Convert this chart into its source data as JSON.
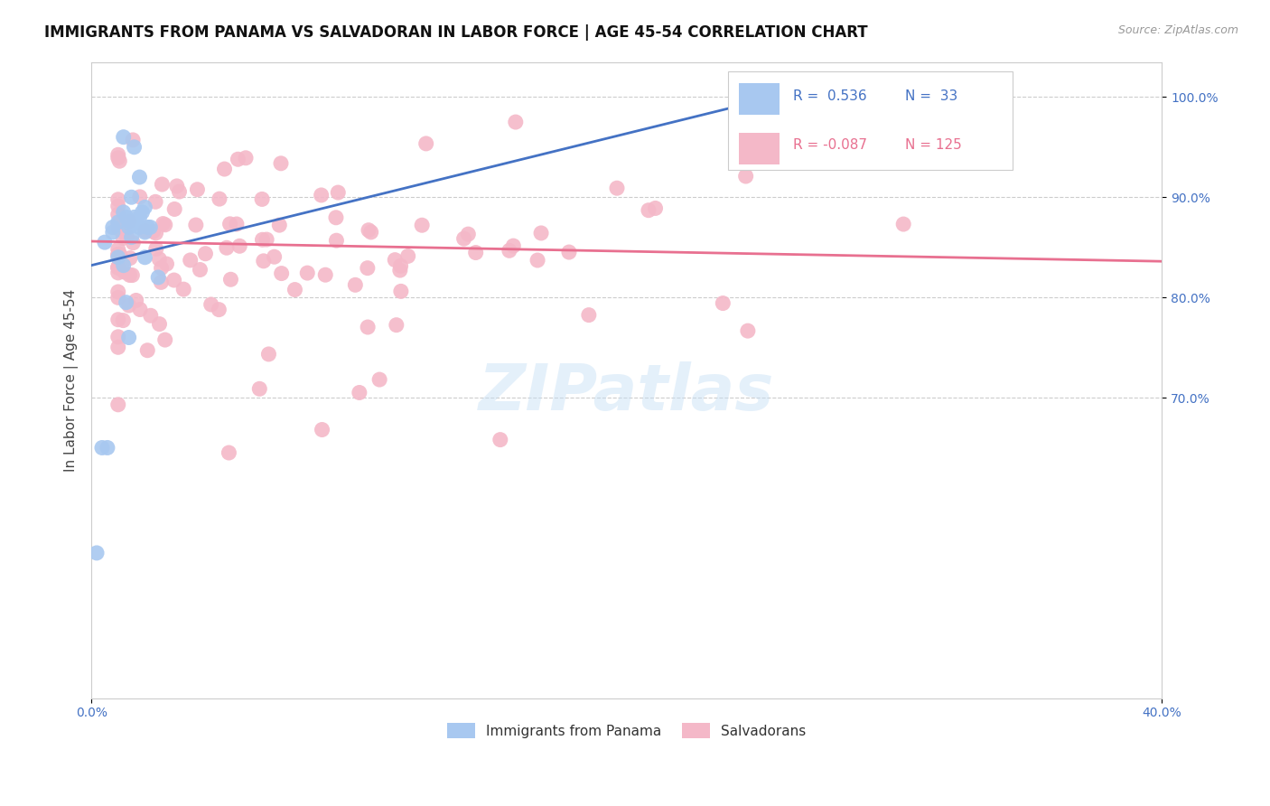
{
  "title": "IMMIGRANTS FROM PANAMA VS SALVADORAN IN LABOR FORCE | AGE 45-54 CORRELATION CHART",
  "source": "Source: ZipAtlas.com",
  "ylabel": "In Labor Force | Age 45-54",
  "xlim": [
    0.0,
    0.4
  ],
  "ylim": [
    0.4,
    1.035
  ],
  "xtick_positions": [
    0.0,
    0.4
  ],
  "xtick_labels": [
    "0.0%",
    "40.0%"
  ],
  "ytick_positions": [
    0.7,
    0.8,
    0.9,
    1.0
  ],
  "ytick_labels": [
    "70.0%",
    "80.0%",
    "90.0%",
    "100.0%"
  ],
  "blue_R": 0.536,
  "blue_N": 33,
  "pink_R": -0.087,
  "pink_N": 125,
  "blue_color": "#a8c8f0",
  "pink_color": "#f4b8c8",
  "blue_line_color": "#4472c4",
  "pink_line_color": "#e87090",
  "legend_label_blue": "Immigrants from Panama",
  "legend_label_pink": "Salvadorans",
  "watermark": "ZIPatlas",
  "blue_line_x0": 0.0,
  "blue_line_y0": 0.832,
  "blue_line_x1": 0.263,
  "blue_line_y1": 1.005,
  "pink_line_x0": 0.0,
  "pink_line_y0": 0.856,
  "pink_line_x1": 0.4,
  "pink_line_y1": 0.836,
  "background_color": "#ffffff",
  "grid_color": "#cccccc",
  "tick_color": "#4472c4",
  "title_fontsize": 12,
  "axis_label_fontsize": 11,
  "tick_fontsize": 10
}
